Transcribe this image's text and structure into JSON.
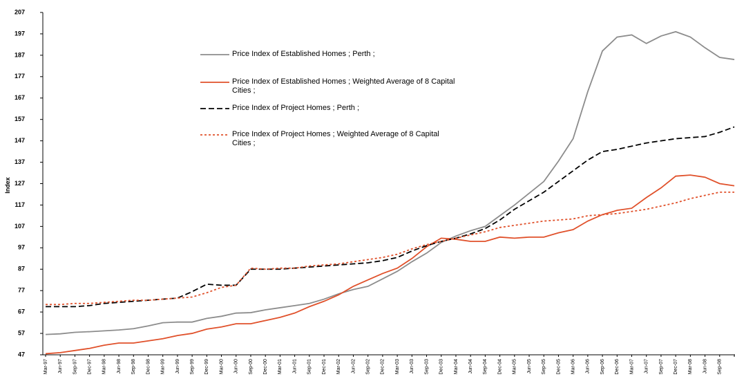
{
  "chart_data": {
    "type": "line",
    "y_label": "Index",
    "categories": [
      "Mar-97",
      "Jun-97",
      "Sep-97",
      "Dec-97",
      "Mar-98",
      "Jun-98",
      "Sep-98",
      "Dec-98",
      "Mar-99",
      "Jun-99",
      "Sep-99",
      "Dec-99",
      "Mar-00",
      "Jun-00",
      "Sep-00",
      "Dec-00",
      "Mar-01",
      "Jun-01",
      "Sep-01",
      "Dec-01",
      "Mar-02",
      "Jun-02",
      "Sep-02",
      "Dec-02",
      "Mar-03",
      "Jun-03",
      "Sep-03",
      "Dec-03",
      "Mar-04",
      "Jun-04",
      "Sep-04",
      "Dec-04",
      "Mar-05",
      "Jun-05",
      "Sep-05",
      "Dec-05",
      "Mar-06",
      "Jun-06",
      "Sep-06",
      "Dec-06",
      "Mar-07",
      "Jun-07",
      "Sep-07",
      "Dec-07",
      "Mar-08",
      "Jun-08",
      "Sep-08",
      null
    ],
    "series": [
      {
        "name": "Price Index of Established Homes ;  Perth ;",
        "color": "#8c8c8c",
        "dash": "solid",
        "values": [
          56.5,
          56.8,
          57.5,
          57.8,
          58.2,
          58.6,
          59.2,
          60.5,
          62,
          62.3,
          62.3,
          64,
          65,
          66.5,
          66.7,
          68,
          69,
          70,
          71,
          73,
          75.5,
          77.5,
          79,
          82.5,
          86,
          90.5,
          94.5,
          99.5,
          102.5,
          105,
          107,
          112,
          117,
          122.5,
          128,
          137.5,
          148,
          170,
          189,
          195.5,
          196.5,
          192.5,
          196,
          198,
          195.5,
          190.5,
          186,
          185
        ]
      },
      {
        "name": "Price Index of Established Homes ;  Weighted Average of 8 Capital Cities ;",
        "color": "#e0502a",
        "dash": "solid",
        "values": [
          47.5,
          48,
          49,
          50,
          51.5,
          52.5,
          52.5,
          53.5,
          54.5,
          56,
          57,
          59,
          60,
          61.5,
          61.5,
          63,
          64.5,
          66.5,
          69.5,
          72,
          75,
          79,
          82,
          85,
          87.5,
          92,
          97.5,
          101.5,
          101,
          100,
          100,
          102,
          101.5,
          102,
          102,
          104,
          105.5,
          109.5,
          112.5,
          114.5,
          115.5,
          120.5,
          125,
          130.5,
          131,
          130,
          127,
          126
        ]
      },
      {
        "name": "Price Index of Project Homes ;  Perth ;",
        "color": "#000000",
        "dash": "dashed",
        "values": [
          69.5,
          69.5,
          69.5,
          70,
          71,
          71.5,
          72,
          72.5,
          73,
          73.5,
          76.5,
          80,
          79.5,
          79.5,
          87,
          87,
          87,
          87.5,
          88,
          88.5,
          89,
          89.5,
          90,
          91,
          92.5,
          95.5,
          98,
          100,
          101.5,
          103.5,
          106,
          110,
          115,
          119,
          123,
          128,
          133,
          138,
          142,
          143,
          144.5,
          146,
          147,
          148,
          148.5,
          149,
          151,
          153.5
        ]
      },
      {
        "name": "Price Index of Project Homes ;  Weighted Average of 8 Capital Cities ;",
        "color": "#e0502a",
        "dash": "dotted",
        "values": [
          70.5,
          70.5,
          71,
          71,
          71.5,
          72,
          72.5,
          72.5,
          73,
          73.5,
          74,
          76,
          78.5,
          79.5,
          87.5,
          87,
          87.5,
          87.5,
          88.5,
          89,
          89.5,
          90.5,
          91.5,
          92.5,
          94,
          96.5,
          98.5,
          100,
          101.5,
          103,
          104.5,
          106.5,
          107.5,
          108.5,
          109.5,
          110,
          110.5,
          112,
          112.5,
          113,
          114,
          115,
          116.5,
          118,
          120,
          121.5,
          123,
          123
        ]
      }
    ],
    "ylim": [
      47,
      207
    ],
    "yticks": [
      47,
      57,
      67,
      77,
      87,
      97,
      107,
      117,
      127,
      137,
      147,
      157,
      167,
      177,
      187,
      197,
      207
    ],
    "grid": false
  }
}
